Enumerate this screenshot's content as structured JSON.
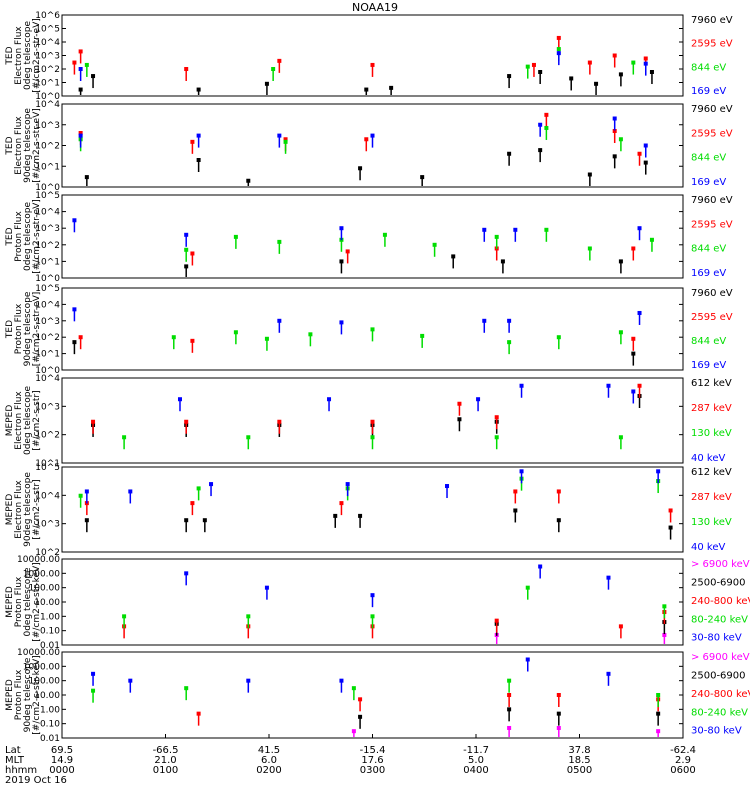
{
  "title": "NOAA19",
  "date_label": "2019 Oct 16",
  "colors": {
    "black": "#000000",
    "red": "#ff0000",
    "green": "#00dd00",
    "blue": "#0000ff",
    "magenta": "#ff00ff"
  },
  "axis_rows": {
    "labels": [
      "Lat",
      "MLT",
      "hhmm"
    ],
    "lat": [
      "69.5",
      "-66.5",
      "41.5",
      "-15.4",
      "-11.7",
      "37.8",
      "-62.4"
    ],
    "mlt": [
      "14.9",
      "21.0",
      "6.0",
      "17.6",
      "5.0",
      "18.5",
      "2.9"
    ],
    "hhmm": [
      "0000",
      "0100",
      "0200",
      "0300",
      "0400",
      "0500",
      "0600"
    ]
  },
  "chart_data": [
    {
      "type": "scatter",
      "ylabel": [
        "TED",
        "Electron Flux",
        "0deg telescope",
        "[#/cm2-s-str-eV]"
      ],
      "ytick_labels": [
        "10^0",
        "10^1",
        "10^2",
        "10^3",
        "10^4",
        "10^5",
        "10^6"
      ],
      "ylim": [
        1,
        1000000
      ],
      "yscale": "log",
      "legend": [
        {
          "label": "7960 eV",
          "color": "#000000"
        },
        {
          "label": "2595 eV",
          "color": "#ff0000"
        },
        {
          "label": "844 eV",
          "color": "#00dd00"
        },
        {
          "label": "169 eV",
          "color": "#0000ff"
        }
      ],
      "series": [
        {
          "color": "#000000",
          "x": [
            0.03,
            0.05,
            0.22,
            0.33,
            0.49,
            0.53,
            0.72,
            0.77,
            0.82,
            0.86,
            0.9,
            0.95
          ],
          "y": [
            3,
            30,
            3,
            8,
            3,
            4,
            30,
            60,
            20,
            8,
            40,
            60
          ]
        },
        {
          "color": "#ff0000",
          "x": [
            0.02,
            0.03,
            0.2,
            0.35,
            0.5,
            0.76,
            0.8,
            0.85,
            0.89,
            0.94
          ],
          "y": [
            300,
            2000,
            100,
            400,
            200,
            200,
            20000,
            300,
            1000,
            600
          ]
        },
        {
          "color": "#00dd00",
          "x": [
            0.04,
            0.34,
            0.75,
            0.8,
            0.92
          ],
          "y": [
            200,
            100,
            150,
            3000,
            300
          ]
        },
        {
          "color": "#0000ff",
          "x": [
            0.03,
            0.8,
            0.94
          ],
          "y": [
            100,
            1500,
            250
          ]
        }
      ]
    },
    {
      "type": "scatter",
      "ylabel": [
        "TED",
        "Electron Flux",
        "90deg telescope",
        "[#/cm2-s-str-eV]"
      ],
      "ytick_labels": [
        "10^0",
        "10^1",
        "10^2",
        "10^3",
        "10^4"
      ],
      "ylim": [
        1,
        10000
      ],
      "yscale": "log",
      "legend": [
        {
          "label": "7960 eV",
          "color": "#000000"
        },
        {
          "label": "2595 eV",
          "color": "#ff0000"
        },
        {
          "label": "844 eV",
          "color": "#00dd00"
        },
        {
          "label": "169 eV",
          "color": "#0000ff"
        }
      ],
      "series": [
        {
          "color": "#000000",
          "x": [
            0.04,
            0.22,
            0.3,
            0.48,
            0.58,
            0.72,
            0.77,
            0.85,
            0.89,
            0.94
          ],
          "y": [
            3,
            20,
            2,
            8,
            3,
            40,
            60,
            4,
            30,
            15
          ]
        },
        {
          "color": "#ff0000",
          "x": [
            0.03,
            0.21,
            0.36,
            0.49,
            0.78,
            0.89,
            0.93
          ],
          "y": [
            400,
            150,
            200,
            200,
            3000,
            500,
            40
          ]
        },
        {
          "color": "#00dd00",
          "x": [
            0.03,
            0.36,
            0.78,
            0.9
          ],
          "y": [
            200,
            150,
            700,
            200
          ]
        },
        {
          "color": "#0000ff",
          "x": [
            0.03,
            0.22,
            0.35,
            0.5,
            0.77,
            0.89,
            0.94
          ],
          "y": [
            300,
            300,
            300,
            300,
            1000,
            2000,
            100
          ]
        }
      ]
    },
    {
      "type": "scatter",
      "ylabel": [
        "TED",
        "Proton Flux",
        "0deg telescope",
        "[#/cm2-s-str-eV]"
      ],
      "ytick_labels": [
        "10^0",
        "10^1",
        "10^2",
        "10^3",
        "10^4",
        "10^5"
      ],
      "ylim": [
        1,
        100000
      ],
      "yscale": "log",
      "legend": [
        {
          "label": "7960 eV",
          "color": "#000000"
        },
        {
          "label": "2595 eV",
          "color": "#ff0000"
        },
        {
          "label": "844 eV",
          "color": "#00dd00"
        },
        {
          "label": "169 eV",
          "color": "#0000ff"
        }
      ],
      "series": [
        {
          "color": "#000000",
          "x": [
            0.2,
            0.45,
            0.63,
            0.71,
            0.9
          ],
          "y": [
            5,
            10,
            20,
            10,
            10
          ]
        },
        {
          "color": "#ff0000",
          "x": [
            0.21,
            0.46,
            0.7,
            0.92
          ],
          "y": [
            30,
            40,
            60,
            60
          ]
        },
        {
          "color": "#00dd00",
          "x": [
            0.2,
            0.28,
            0.35,
            0.45,
            0.52,
            0.6,
            0.7,
            0.78,
            0.85,
            0.95
          ],
          "y": [
            50,
            300,
            150,
            200,
            400,
            100,
            300,
            800,
            60,
            200
          ]
        },
        {
          "color": "#0000ff",
          "x": [
            0.02,
            0.2,
            0.45,
            0.68,
            0.73,
            0.93
          ],
          "y": [
            3000,
            400,
            1000,
            800,
            800,
            1000
          ]
        }
      ]
    },
    {
      "type": "scatter",
      "ylabel": [
        "TED",
        "Proton Flux",
        "90deg telescope",
        "[#/cm2-s-str-eV]"
      ],
      "ytick_labels": [
        "10^0",
        "10^1",
        "10^2",
        "10^3",
        "10^4",
        "10^5"
      ],
      "ylim": [
        1,
        100000
      ],
      "yscale": "log",
      "legend": [
        {
          "label": "7960 eV",
          "color": "#000000"
        },
        {
          "label": "2595 eV",
          "color": "#ff0000"
        },
        {
          "label": "844 eV",
          "color": "#00dd00"
        },
        {
          "label": "169 eV",
          "color": "#0000ff"
        }
      ],
      "series": [
        {
          "color": "#000000",
          "x": [
            0.02,
            0.92
          ],
          "y": [
            50,
            10
          ]
        },
        {
          "color": "#ff0000",
          "x": [
            0.03,
            0.21,
            0.92
          ],
          "y": [
            100,
            60,
            80
          ]
        },
        {
          "color": "#00dd00",
          "x": [
            0.18,
            0.28,
            0.33,
            0.4,
            0.5,
            0.58,
            0.72,
            0.8,
            0.9
          ],
          "y": [
            100,
            200,
            80,
            150,
            300,
            120,
            50,
            100,
            200
          ]
        },
        {
          "color": "#0000ff",
          "x": [
            0.02,
            0.35,
            0.45,
            0.68,
            0.72,
            0.93
          ],
          "y": [
            5000,
            1000,
            800,
            1000,
            1000,
            3000
          ]
        }
      ]
    },
    {
      "type": "scatter",
      "ylabel": [
        "MEPED",
        "Electron Flux",
        "0deg telescope",
        "[#/cm2-s-str]"
      ],
      "ytick_labels": [
        "10^1",
        "10^2",
        "10^3",
        "10^4"
      ],
      "ylim": [
        10,
        20000
      ],
      "yscale": "log",
      "legend": [
        {
          "label": "612 keV",
          "color": "#000000"
        },
        {
          "label": "287 keV",
          "color": "#ff0000"
        },
        {
          "label": "130 keV",
          "color": "#00dd00"
        },
        {
          "label": "40 keV",
          "color": "#0000ff"
        }
      ],
      "series": [
        {
          "color": "#000000",
          "x": [
            0.05,
            0.2,
            0.35,
            0.5,
            0.64,
            0.7,
            0.93
          ],
          "y": [
            300,
            300,
            300,
            300,
            500,
            400,
            4000
          ]
        },
        {
          "color": "#ff0000",
          "x": [
            0.05,
            0.2,
            0.35,
            0.5,
            0.64,
            0.7,
            0.93
          ],
          "y": [
            400,
            400,
            400,
            400,
            2000,
            600,
            10000
          ]
        },
        {
          "color": "#00dd00",
          "x": [
            0.1,
            0.3,
            0.5,
            0.7,
            0.9
          ],
          "y": [
            100,
            100,
            100,
            100,
            100
          ]
        },
        {
          "color": "#0000ff",
          "x": [
            0.19,
            0.43,
            0.67,
            0.74,
            0.88,
            0.92
          ],
          "y": [
            3000,
            3000,
            3000,
            10000,
            10000,
            6000
          ]
        }
      ]
    },
    {
      "type": "scatter",
      "ylabel": [
        "MEPED",
        "Electron Flux",
        "90deg telescope",
        "[#/cm2-s-str]"
      ],
      "ytick_labels": [
        "10^2",
        "10^3",
        "10^4",
        "10^5"
      ],
      "ylim": [
        100,
        300000
      ],
      "yscale": "log",
      "legend": [
        {
          "label": "612 keV",
          "color": "#000000"
        },
        {
          "label": "287 keV",
          "color": "#ff0000"
        },
        {
          "label": "130 keV",
          "color": "#00dd00"
        },
        {
          "label": "40 keV",
          "color": "#0000ff"
        }
      ],
      "series": [
        {
          "color": "#000000",
          "x": [
            0.04,
            0.2,
            0.23,
            0.44,
            0.48,
            0.73,
            0.8,
            0.98
          ],
          "y": [
            2000,
            2000,
            2000,
            3000,
            3000,
            5000,
            2000,
            1000
          ]
        },
        {
          "color": "#ff0000",
          "x": [
            0.04,
            0.21,
            0.45,
            0.73,
            0.8,
            0.98
          ],
          "y": [
            10000,
            10000,
            10000,
            30000,
            30000,
            5000
          ]
        },
        {
          "color": "#00dd00",
          "x": [
            0.03,
            0.22,
            0.46,
            0.74,
            0.96
          ],
          "y": [
            20000,
            40000,
            40000,
            100000,
            80000
          ]
        },
        {
          "color": "#0000ff",
          "x": [
            0.04,
            0.11,
            0.24,
            0.46,
            0.62,
            0.74,
            0.96
          ],
          "y": [
            30000,
            30000,
            60000,
            60000,
            50000,
            200000,
            200000
          ]
        }
      ]
    },
    {
      "type": "scatter",
      "ylabel": [
        "MEPED",
        "Proton Flux",
        "0deg telescope",
        "[#/cm2-s-str-keV]"
      ],
      "ytick_labels": [
        "0.01",
        "0.10",
        "1.00",
        "10.00",
        "100.00",
        "1000.00",
        "10000.00"
      ],
      "ylim": [
        0.01,
        10000
      ],
      "yscale": "log",
      "legend": [
        {
          "label": "> 6900 keV",
          "color": "#ff00ff"
        },
        {
          "label": "2500-6900",
          "color": "#000000"
        },
        {
          "label": "240-800 keV",
          "color": "#ff0000"
        },
        {
          "label": "80-240 keV",
          "color": "#00dd00"
        },
        {
          "label": "30-80 keV",
          "color": "#0000ff"
        }
      ],
      "series": [
        {
          "color": "#ff00ff",
          "x": [
            0.7,
            0.97
          ],
          "y": [
            0.05,
            0.05
          ]
        },
        {
          "color": "#000000",
          "x": [
            0.7,
            0.97
          ],
          "y": [
            0.3,
            0.4
          ]
        },
        {
          "color": "#ff0000",
          "x": [
            0.1,
            0.3,
            0.5,
            0.7,
            0.9,
            0.97
          ],
          "y": [
            0.2,
            0.2,
            0.2,
            0.5,
            0.2,
            2
          ]
        },
        {
          "color": "#00dd00",
          "x": [
            0.1,
            0.3,
            0.5,
            0.75,
            0.97
          ],
          "y": [
            1,
            1,
            1,
            100,
            5
          ]
        },
        {
          "color": "#0000ff",
          "x": [
            0.2,
            0.33,
            0.5,
            0.77,
            0.88
          ],
          "y": [
            1000,
            100,
            30,
            3000,
            500
          ]
        }
      ]
    },
    {
      "type": "scatter",
      "ylabel": [
        "MEPED",
        "Proton Flux",
        "90deg telescope",
        "[#/cm2-s-str-keV]"
      ],
      "ytick_labels": [
        "0.01",
        "0.10",
        "1.00",
        "10.00",
        "100.00",
        "1000.00",
        "10000.00"
      ],
      "ylim": [
        0.01,
        10000
      ],
      "yscale": "log",
      "legend": [
        {
          "label": "> 6900 keV",
          "color": "#ff00ff"
        },
        {
          "label": "2500-6900",
          "color": "#000000"
        },
        {
          "label": "240-800 keV",
          "color": "#ff0000"
        },
        {
          "label": "80-240 keV",
          "color": "#00dd00"
        },
        {
          "label": "30-80 keV",
          "color": "#0000ff"
        }
      ],
      "series": [
        {
          "color": "#ff00ff",
          "x": [
            0.47,
            0.72,
            0.8,
            0.96
          ],
          "y": [
            0.03,
            0.05,
            0.05,
            0.03
          ]
        },
        {
          "color": "#000000",
          "x": [
            0.48,
            0.72,
            0.8,
            0.96
          ],
          "y": [
            0.3,
            1,
            0.5,
            0.5
          ]
        },
        {
          "color": "#ff0000",
          "x": [
            0.22,
            0.48,
            0.72,
            0.8,
            0.96
          ],
          "y": [
            0.5,
            5,
            10,
            10,
            5
          ]
        },
        {
          "color": "#00dd00",
          "x": [
            0.05,
            0.2,
            0.47,
            0.72,
            0.96
          ],
          "y": [
            20,
            30,
            30,
            100,
            10
          ]
        },
        {
          "color": "#0000ff",
          "x": [
            0.05,
            0.11,
            0.3,
            0.45,
            0.75,
            0.88
          ],
          "y": [
            300,
            100,
            100,
            100,
            3000,
            300
          ]
        }
      ]
    }
  ]
}
